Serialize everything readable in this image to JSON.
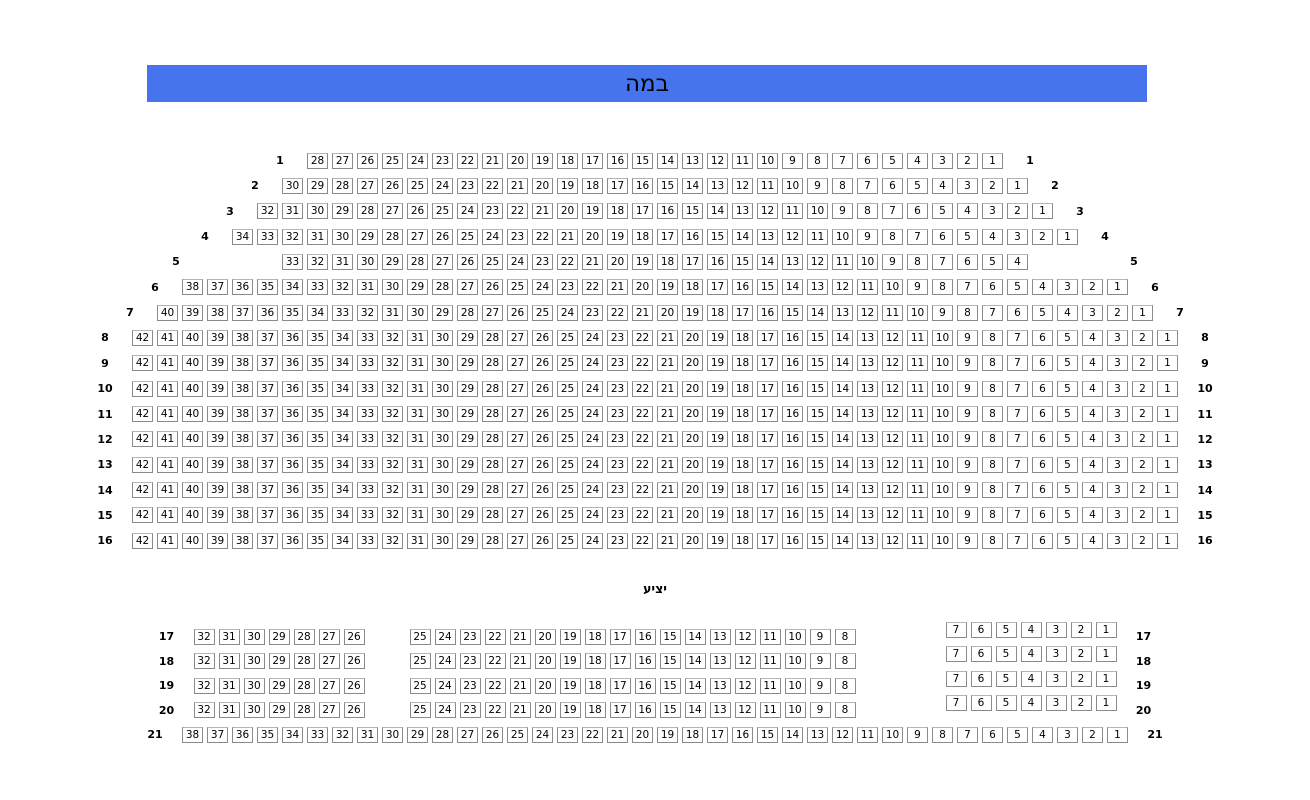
{
  "stage": {
    "label": "במה",
    "color": "#4574EC"
  },
  "balcony": {
    "label": "יציע"
  },
  "seat_map": {
    "rows": [
      {
        "row": "1",
        "section": "main",
        "blocks": [
          {
            "from": 28,
            "to": 1
          }
        ]
      },
      {
        "row": "2",
        "section": "main",
        "blocks": [
          {
            "from": 30,
            "to": 1
          }
        ]
      },
      {
        "row": "3",
        "section": "main",
        "blocks": [
          {
            "from": 32,
            "to": 1
          }
        ]
      },
      {
        "row": "4",
        "section": "main",
        "blocks": [
          {
            "from": 34,
            "to": 1
          }
        ]
      },
      {
        "row": "5",
        "section": "main",
        "blocks": [
          {
            "from": 33,
            "to": 4
          }
        ]
      },
      {
        "row": "6",
        "section": "main",
        "blocks": [
          {
            "from": 38,
            "to": 1
          }
        ]
      },
      {
        "row": "7",
        "section": "main",
        "blocks": [
          {
            "from": 40,
            "to": 1
          }
        ]
      },
      {
        "row": "8",
        "section": "main",
        "blocks": [
          {
            "from": 42,
            "to": 1
          }
        ]
      },
      {
        "row": "9",
        "section": "main",
        "blocks": [
          {
            "from": 42,
            "to": 1
          }
        ]
      },
      {
        "row": "10",
        "section": "main",
        "blocks": [
          {
            "from": 42,
            "to": 1
          }
        ]
      },
      {
        "row": "11",
        "section": "main",
        "blocks": [
          {
            "from": 42,
            "to": 1
          }
        ]
      },
      {
        "row": "12",
        "section": "main",
        "blocks": [
          {
            "from": 42,
            "to": 1
          }
        ]
      },
      {
        "row": "13",
        "section": "main",
        "blocks": [
          {
            "from": 42,
            "to": 1
          }
        ]
      },
      {
        "row": "14",
        "section": "main",
        "blocks": [
          {
            "from": 42,
            "to": 1
          }
        ]
      },
      {
        "row": "15",
        "section": "main",
        "blocks": [
          {
            "from": 42,
            "to": 1
          }
        ]
      },
      {
        "row": "16",
        "section": "main",
        "blocks": [
          {
            "from": 42,
            "to": 1
          }
        ]
      },
      {
        "row": "17",
        "section": "balcony",
        "blocks": [
          {
            "from": 32,
            "to": 26
          },
          {
            "from": 25,
            "to": 8
          },
          {
            "from": 7,
            "to": 1
          }
        ]
      },
      {
        "row": "18",
        "section": "balcony",
        "blocks": [
          {
            "from": 32,
            "to": 26
          },
          {
            "from": 25,
            "to": 8
          },
          {
            "from": 7,
            "to": 1
          }
        ]
      },
      {
        "row": "19",
        "section": "balcony",
        "blocks": [
          {
            "from": 32,
            "to": 26
          },
          {
            "from": 25,
            "to": 8
          },
          {
            "from": 7,
            "to": 1
          }
        ]
      },
      {
        "row": "20",
        "section": "balcony",
        "blocks": [
          {
            "from": 32,
            "to": 26
          },
          {
            "from": 25,
            "to": 8
          },
          {
            "from": 7,
            "to": 1
          }
        ]
      },
      {
        "row": "21",
        "section": "balcony",
        "blocks": [
          {
            "from": 38,
            "to": 1
          }
        ]
      }
    ]
  }
}
